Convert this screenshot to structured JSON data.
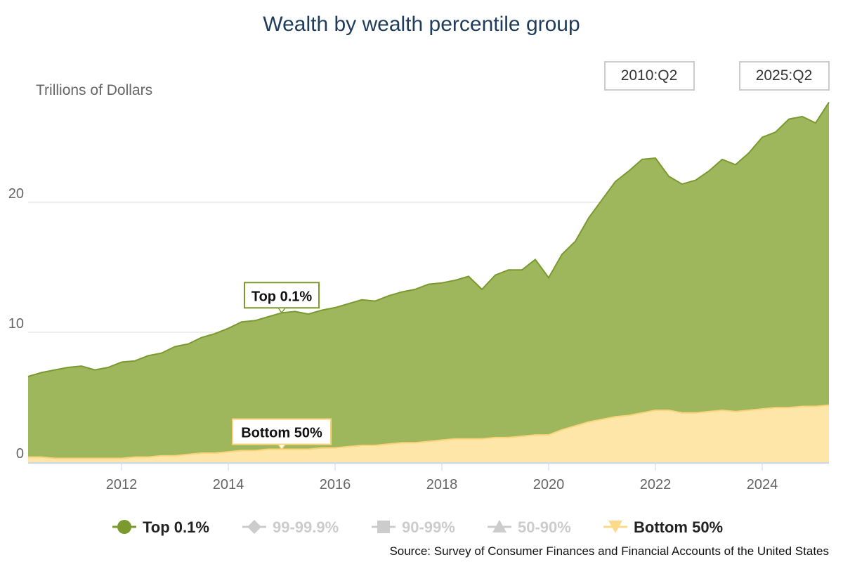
{
  "title": "Wealth by wealth percentile group",
  "source": "Source: Survey of Consumer Finances and Financial Accounts of the United States",
  "range_buttons": {
    "start": "2010:Q2",
    "end": "2025:Q2"
  },
  "legend": [
    {
      "label": "Top 0.1%",
      "marker": "circle-marker-icon",
      "active": true,
      "color": "#7a9a2e"
    },
    {
      "label": "99-99.9%",
      "marker": "diamond-marker-icon",
      "active": false,
      "color": "#cccccc"
    },
    {
      "label": "90-99%",
      "marker": "square-marker-icon",
      "active": false,
      "color": "#cccccc"
    },
    {
      "label": "50-90%",
      "marker": "triangle-marker-icon",
      "active": false,
      "color": "#cccccc"
    },
    {
      "label": "Bottom 50%",
      "marker": "triangle-down-marker-icon",
      "active": true,
      "color": "#fdd98b"
    }
  ],
  "chart_data": {
    "type": "area",
    "ylabel": "Trillions of Dollars",
    "ylim": [
      0,
      28
    ],
    "xlim": [
      2010.25,
      2025.25
    ],
    "yticks": [
      0,
      10,
      20
    ],
    "xticks": [
      2012,
      2014,
      2016,
      2018,
      2020,
      2022,
      2024
    ],
    "grid": true,
    "x": [
      2010.25,
      2010.5,
      2010.75,
      2011.0,
      2011.25,
      2011.5,
      2011.75,
      2012.0,
      2012.25,
      2012.5,
      2012.75,
      2013.0,
      2013.25,
      2013.5,
      2013.75,
      2014.0,
      2014.25,
      2014.5,
      2014.75,
      2015.0,
      2015.25,
      2015.5,
      2015.75,
      2016.0,
      2016.25,
      2016.5,
      2016.75,
      2017.0,
      2017.25,
      2017.5,
      2017.75,
      2018.0,
      2018.25,
      2018.5,
      2018.75,
      2019.0,
      2019.25,
      2019.5,
      2019.75,
      2020.0,
      2020.25,
      2020.5,
      2020.75,
      2021.0,
      2021.25,
      2021.5,
      2021.75,
      2022.0,
      2022.25,
      2022.5,
      2022.75,
      2023.0,
      2023.25,
      2023.5,
      2023.75,
      2024.0,
      2024.25,
      2024.5,
      2024.75,
      2025.0,
      2025.25
    ],
    "series": [
      {
        "name": "Top 0.1%",
        "color": "#9fb75c",
        "line_color": "#7a9a2e",
        "values": [
          6.6,
          6.9,
          7.1,
          7.3,
          7.4,
          7.1,
          7.3,
          7.7,
          7.8,
          8.2,
          8.4,
          8.9,
          9.1,
          9.6,
          9.9,
          10.3,
          10.8,
          10.9,
          11.2,
          11.5,
          11.6,
          11.4,
          11.7,
          11.9,
          12.2,
          12.5,
          12.4,
          12.8,
          13.1,
          13.3,
          13.7,
          13.8,
          14.0,
          14.3,
          13.3,
          14.4,
          14.8,
          14.8,
          15.6,
          14.2,
          16.0,
          17.0,
          18.8,
          20.2,
          21.6,
          22.4,
          23.3,
          23.4,
          22.0,
          21.4,
          21.7,
          22.4,
          23.3,
          22.9,
          23.8,
          25.0,
          25.4,
          26.4,
          26.6,
          26.1,
          27.7
        ]
      },
      {
        "name": "Bottom 50%",
        "color": "#fde6a8",
        "line_color": "#fcd27a",
        "values": [
          0.4,
          0.4,
          0.3,
          0.3,
          0.3,
          0.3,
          0.3,
          0.3,
          0.4,
          0.4,
          0.5,
          0.5,
          0.6,
          0.7,
          0.7,
          0.8,
          0.9,
          0.9,
          1.0,
          1.0,
          1.0,
          1.0,
          1.1,
          1.1,
          1.2,
          1.3,
          1.3,
          1.4,
          1.5,
          1.5,
          1.6,
          1.7,
          1.8,
          1.8,
          1.8,
          1.9,
          1.9,
          2.0,
          2.1,
          2.1,
          2.5,
          2.8,
          3.1,
          3.3,
          3.5,
          3.6,
          3.8,
          4.0,
          4.0,
          3.8,
          3.8,
          3.9,
          4.0,
          3.9,
          4.0,
          4.1,
          4.2,
          4.2,
          4.3,
          4.3,
          4.4
        ]
      }
    ],
    "annotations": [
      {
        "label": "Top 0.1%",
        "x": 2015.0,
        "y": 11.5
      },
      {
        "label": "Bottom 50%",
        "x": 2015.0,
        "y": 1.0
      }
    ]
  }
}
